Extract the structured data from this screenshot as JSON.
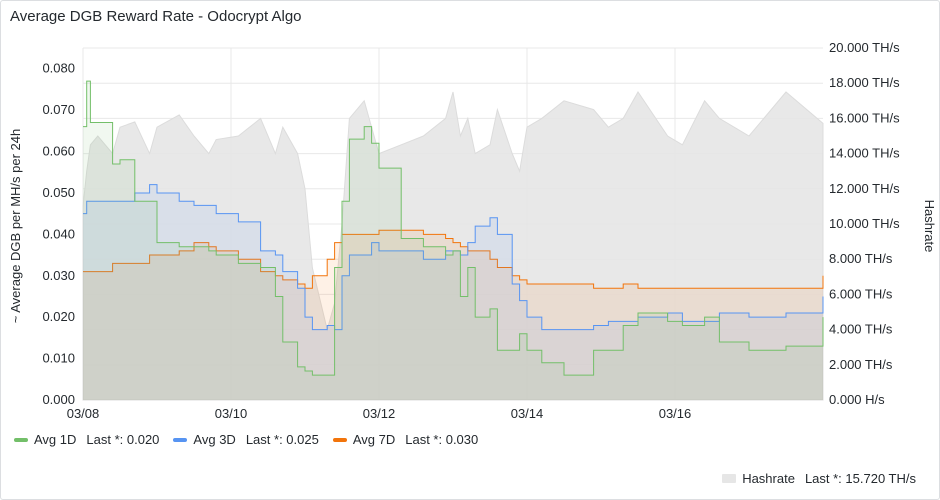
{
  "panel": {
    "title": "Average DGB Reward Rate - Odocrypt Algo"
  },
  "colors": {
    "avg1d": "#73bf69",
    "avg3d": "#5794f2",
    "avg7d": "#f2740b",
    "hashrate": "#d9d9d9",
    "grid": "#e8e8e8"
  },
  "chart_data": {
    "type": "line",
    "x_ticks": [
      "03/08",
      "03/10",
      "03/12",
      "03/14",
      "03/16"
    ],
    "ylabel": "~ Average DGB per MH/s per 24h",
    "ylim": [
      0,
      0.085
    ],
    "y_ticks": [
      "0.000",
      "0.010",
      "0.020",
      "0.030",
      "0.040",
      "0.050",
      "0.060",
      "0.070",
      "0.080"
    ],
    "ylabel_right": "Hashrate",
    "ylim_right": [
      0,
      20000
    ],
    "y_ticks_right": [
      "0.000 H/s",
      "2.000 TH/s",
      "4.000 TH/s",
      "6.000 TH/s",
      "8.000 TH/s",
      "10.000 TH/s",
      "12.000 TH/s",
      "14.000 TH/s",
      "16.000 TH/s",
      "18.000 TH/s",
      "20.000 TH/s"
    ],
    "x_days": [
      0,
      0.05,
      0.1,
      0.2,
      0.4,
      0.5,
      0.7,
      0.9,
      1.0,
      1.3,
      1.5,
      1.7,
      1.8,
      2.1,
      2.4,
      2.6,
      2.7,
      2.9,
      3.0,
      3.1,
      3.3,
      3.4,
      3.5,
      3.6,
      3.8,
      3.9,
      4.0,
      4.3,
      4.6,
      4.9,
      5.0,
      5.1,
      5.2,
      5.3,
      5.5,
      5.6,
      5.8,
      5.9,
      6.0,
      6.2,
      6.5,
      6.9,
      7.1,
      7.3,
      7.5,
      7.9,
      8.1,
      8.4,
      8.6,
      9.0,
      9.5,
      10.0
    ],
    "series": [
      {
        "name": "Avg 1D",
        "last": "0.020",
        "values": [
          0.066,
          0.077,
          0.067,
          0.067,
          0.057,
          0.058,
          0.048,
          0.048,
          0.038,
          0.037,
          0.037,
          0.036,
          0.035,
          0.033,
          0.032,
          0.025,
          0.014,
          0.008,
          0.007,
          0.006,
          0.006,
          0.032,
          0.048,
          0.063,
          0.066,
          0.062,
          0.056,
          0.039,
          0.037,
          0.035,
          0.036,
          0.025,
          0.032,
          0.02,
          0.022,
          0.012,
          0.012,
          0.016,
          0.012,
          0.009,
          0.006,
          0.012,
          0.012,
          0.018,
          0.021,
          0.019,
          0.018,
          0.02,
          0.014,
          0.012,
          0.013,
          0.02
        ]
      },
      {
        "name": "Avg 3D",
        "last": "0.025",
        "values": [
          0.045,
          0.048,
          0.048,
          0.048,
          0.048,
          0.048,
          0.05,
          0.052,
          0.05,
          0.048,
          0.047,
          0.047,
          0.045,
          0.043,
          0.036,
          0.035,
          0.031,
          0.027,
          0.02,
          0.017,
          0.018,
          0.017,
          0.03,
          0.035,
          0.035,
          0.038,
          0.036,
          0.036,
          0.034,
          0.036,
          0.036,
          0.035,
          0.038,
          0.042,
          0.044,
          0.04,
          0.028,
          0.024,
          0.02,
          0.017,
          0.017,
          0.018,
          0.019,
          0.019,
          0.02,
          0.021,
          0.019,
          0.019,
          0.021,
          0.02,
          0.021,
          0.025
        ]
      },
      {
        "name": "Avg 7D",
        "last": "0.030",
        "values": [
          0.031,
          0.031,
          0.031,
          0.031,
          0.033,
          0.033,
          0.033,
          0.035,
          0.035,
          0.036,
          0.038,
          0.037,
          0.036,
          0.034,
          0.031,
          0.03,
          0.029,
          0.028,
          0.027,
          0.03,
          0.034,
          0.038,
          0.04,
          0.04,
          0.04,
          0.04,
          0.041,
          0.041,
          0.04,
          0.039,
          0.038,
          0.037,
          0.036,
          0.036,
          0.034,
          0.032,
          0.03,
          0.029,
          0.028,
          0.028,
          0.028,
          0.027,
          0.027,
          0.028,
          0.027,
          0.027,
          0.027,
          0.027,
          0.027,
          0.027,
          0.027,
          0.03
        ]
      },
      {
        "name": "Hashrate",
        "last": "15.720 TH/s",
        "values": [
          11000,
          13000,
          14500,
          15000,
          14000,
          15500,
          15800,
          14000,
          15500,
          16200,
          15000,
          14000,
          14800,
          15000,
          16000,
          14000,
          15500,
          14000,
          12000,
          7500,
          4000,
          5500,
          10000,
          16000,
          17000,
          15500,
          14000,
          14500,
          15000,
          16000,
          17500,
          15000,
          16000,
          14000,
          14500,
          16500,
          14000,
          13000,
          15500,
          16000,
          17000,
          16500,
          15500,
          16000,
          17500,
          15000,
          14500,
          17000,
          16000,
          15000,
          17500,
          15720
        ]
      }
    ]
  }
}
